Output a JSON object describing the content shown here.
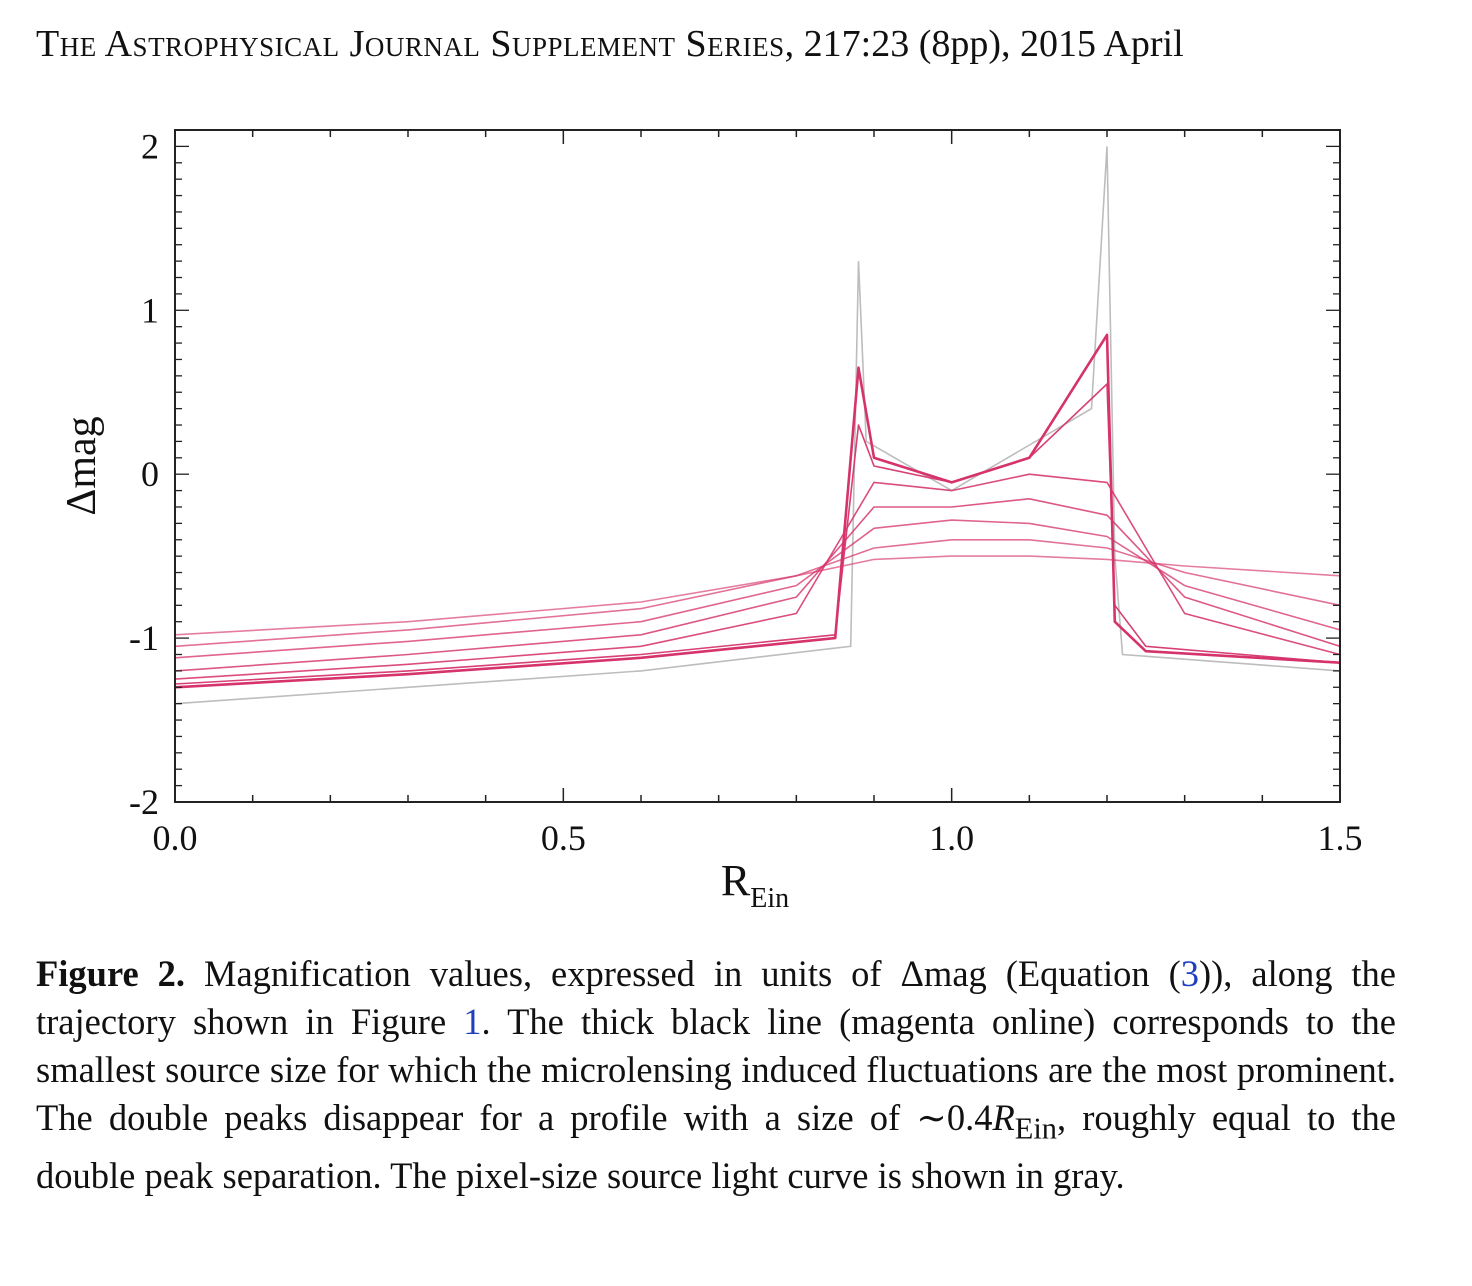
{
  "header": {
    "journal": "The Astrophysical Journal Supplement Series",
    "citation": ", 217:23 (8pp), 2015 April"
  },
  "chart_data": {
    "type": "line",
    "xlabel": "R",
    "xlabel_sub": "Ein",
    "ylabel": "Δmag",
    "xlim": [
      0.0,
      1.5
    ],
    "ylim": [
      -2,
      2.1
    ],
    "x_ticks": [
      "0.0",
      "0.5",
      "1.0",
      "1.5"
    ],
    "y_ticks": [
      "2",
      "1",
      "0",
      "-1",
      "-2"
    ],
    "caustic_crossings": [
      0.88,
      1.21
    ],
    "colors": {
      "profiles": "#d6336c",
      "pixel_source": "#bdbdbd"
    },
    "series": [
      {
        "x": [
          0.0,
          0.3,
          0.6,
          0.85,
          0.88,
          0.9,
          1.0,
          1.1,
          1.2,
          1.21,
          1.25,
          1.5
        ],
        "y": [
          -1.3,
          -1.22,
          -1.12,
          -1.0,
          0.65,
          0.1,
          -0.05,
          0.1,
          0.85,
          -0.9,
          -1.08,
          -1.15
        ]
      },
      {
        "x": [
          0.0,
          0.3,
          0.6,
          0.85,
          0.88,
          0.9,
          1.0,
          1.1,
          1.2,
          1.21,
          1.25,
          1.5
        ],
        "y": [
          -1.28,
          -1.2,
          -1.1,
          -0.98,
          0.3,
          0.05,
          -0.05,
          0.1,
          0.55,
          -0.8,
          -1.05,
          -1.15
        ]
      },
      {
        "x": [
          0.0,
          0.3,
          0.6,
          0.8,
          0.9,
          1.0,
          1.1,
          1.2,
          1.3,
          1.5
        ],
        "y": [
          -1.25,
          -1.16,
          -1.05,
          -0.85,
          -0.05,
          -0.1,
          0.0,
          -0.05,
          -0.85,
          -1.1
        ]
      },
      {
        "x": [
          0.0,
          0.3,
          0.6,
          0.8,
          0.9,
          1.0,
          1.1,
          1.2,
          1.3,
          1.5
        ],
        "y": [
          -1.2,
          -1.1,
          -0.98,
          -0.75,
          -0.2,
          -0.2,
          -0.15,
          -0.25,
          -0.75,
          -1.05
        ]
      },
      {
        "x": [
          0.0,
          0.3,
          0.6,
          0.8,
          0.9,
          1.0,
          1.1,
          1.2,
          1.3,
          1.5
        ],
        "y": [
          -1.12,
          -1.02,
          -0.9,
          -0.68,
          -0.33,
          -0.28,
          -0.3,
          -0.38,
          -0.68,
          -0.95
        ]
      },
      {
        "x": [
          0.0,
          0.3,
          0.6,
          0.8,
          0.9,
          1.0,
          1.1,
          1.2,
          1.3,
          1.5
        ],
        "y": [
          -1.05,
          -0.95,
          -0.82,
          -0.62,
          -0.45,
          -0.4,
          -0.4,
          -0.45,
          -0.6,
          -0.8
        ]
      },
      {
        "x": [
          0.0,
          0.3,
          0.6,
          0.8,
          0.9,
          1.0,
          1.1,
          1.2,
          1.3,
          1.5
        ],
        "y": [
          -0.98,
          -0.9,
          -0.78,
          -0.62,
          -0.52,
          -0.5,
          -0.5,
          -0.52,
          -0.56,
          -0.62
        ]
      }
    ],
    "pixel_source_curve": {
      "x": [
        0.0,
        0.3,
        0.6,
        0.87,
        0.88,
        0.89,
        1.0,
        1.18,
        1.2,
        1.21,
        1.22,
        1.5
      ],
      "y": [
        -1.4,
        -1.3,
        -1.2,
        -1.05,
        1.3,
        0.2,
        -0.1,
        0.4,
        2.0,
        -0.5,
        -1.1,
        -1.2
      ]
    }
  },
  "caption": {
    "label": "Figure 2.",
    "part1": " Magnification values, expressed in units of Δmag (Equation (",
    "eq_ref": "3",
    "part2": ")), along the trajectory shown in Figure ",
    "fig_ref": "1",
    "part3": ". The thick black line (magenta online) corresponds to the smallest source size for which the microlensing induced fluctuations are the most prominent. The double peaks disappear for a profile with a size of ∼0.4",
    "r_symbol": "R",
    "r_sub": "Ein",
    "part4": ", roughly equal to the double peak separation. The pixel-size source light curve is shown in gray."
  }
}
